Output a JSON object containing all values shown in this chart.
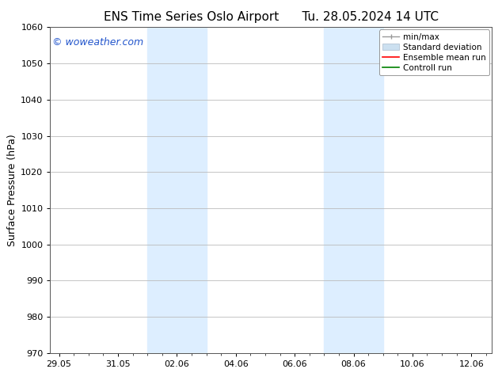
{
  "title_left": "ENS Time Series Oslo Airport",
  "title_right": "Tu. 28.05.2024 14 UTC",
  "ylabel": "Surface Pressure (hPa)",
  "ylim": [
    970,
    1060
  ],
  "yticks": [
    970,
    980,
    990,
    1000,
    1010,
    1020,
    1030,
    1040,
    1050,
    1060
  ],
  "xtick_labels": [
    "29.05",
    "31.05",
    "02.06",
    "04.06",
    "06.06",
    "08.06",
    "10.06",
    "12.06"
  ],
  "xtick_positions": [
    0,
    2,
    4,
    6,
    8,
    10,
    12,
    14
  ],
  "xlim": [
    -0.3,
    14.7
  ],
  "shaded_bands": [
    {
      "start": 3.0,
      "end": 5.0,
      "color": "#ddeeff"
    },
    {
      "start": 9.0,
      "end": 11.0,
      "color": "#ddeeff"
    }
  ],
  "watermark_text": "© woweather.com",
  "watermark_color": "#2255cc",
  "legend_entries": [
    {
      "label": "min/max",
      "color": "#999999",
      "type": "errbar"
    },
    {
      "label": "Standard deviation",
      "color": "#cce0f0",
      "type": "patch"
    },
    {
      "label": "Ensemble mean run",
      "color": "red",
      "type": "line"
    },
    {
      "label": "Controll run",
      "color": "green",
      "type": "line"
    }
  ],
  "background_color": "#ffffff",
  "grid_color": "#bbbbbb",
  "spine_color": "#555555",
  "title_fontsize": 11,
  "ylabel_fontsize": 9,
  "tick_fontsize": 8,
  "legend_fontsize": 7.5,
  "watermark_fontsize": 9
}
